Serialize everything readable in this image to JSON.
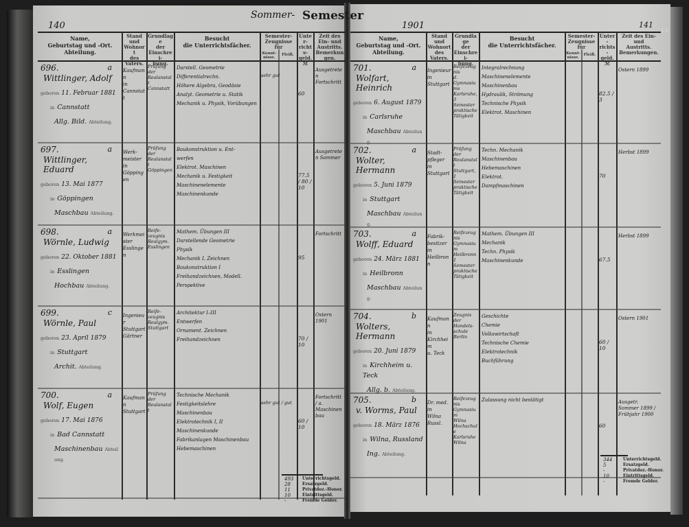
{
  "semester": {
    "season": "Sommer-",
    "label": "Semester",
    "year": "1901"
  },
  "left_page_number": "140",
  "right_page_number": "141",
  "margin_mark": "13",
  "headers": {
    "name": "Name,\nGeburtstag und -Ort.\nAbteilung.",
    "stand": "Stand\nund\nWohnort\ndes\nVaters.",
    "grundlage": "Grundlage\nder\nEinschrei-\nbung.",
    "besucht": "Besucht\ndie Unterrichtsfächer.",
    "zeugnisse": "Semester-\nZeugnisse für",
    "zeugnisse_sub1": "Kennt-\nnisse.",
    "zeugnisse_sub2": "Fleiß.",
    "unterrichtsgeld": "Unter-\nrichts-\ngeld.\nℳ",
    "zeit": "Zeit des Ein- und\nAustritts.\nBemerkungen."
  },
  "printed": {
    "geboren": "geboren",
    "in": "in",
    "abteilung": "Abteilung."
  },
  "left_entries": [
    {
      "no": "696.",
      "cls": "a",
      "name": "Wittlinger, Adolf",
      "born": "11. Februar 1881",
      "place": "Cannstatt",
      "dept": "Allg. Bild.",
      "father": [
        "Kaufmann",
        "in",
        "Cannstatt"
      ],
      "basis": [
        "Prüfung",
        "der",
        "Realanstalt",
        "Cannstatt"
      ],
      "subjects": [
        "Darstell. Geometrie",
        "Differentialrechn.",
        "Höhere Algebra, Geodäsie",
        "Analyt. Geometrie u. Statik",
        "Mechanik u. Physik, Vorübungen"
      ],
      "grades": "sehr gut",
      "fee": "60",
      "remark": "Ausgetreten Fortschritt"
    },
    {
      "no": "697.",
      "cls": "a",
      "name": "Wittlinger, Eduard",
      "born": "13. Mai 1877",
      "place": "Göppingen",
      "dept": "Maschbau",
      "father": [
        "Werk-",
        "meister",
        "in",
        "Göppingen"
      ],
      "basis": [
        "Prüfung",
        "der",
        "Realanstalt",
        "Göppingen"
      ],
      "subjects": [
        "Baukonstruktion u. Ent-",
        "werfen",
        "Elektrot. Maschinen",
        "Mechanik u. Festigkeit",
        "Maschinenelemente",
        "Maschinenkunde"
      ],
      "grades": "",
      "fee": "77.5 / 80 / 10",
      "remark": "Ausgetreten Sommer"
    },
    {
      "no": "698.",
      "cls": "a",
      "name": "Wörnle, Ludwig",
      "born": "22. Oktober 1881",
      "place": "Esslingen",
      "dept": "Hochbau",
      "father": [
        "Werkmeister",
        "Esslingen"
      ],
      "basis": [
        "Reife-",
        "zeugnis",
        "Realgym.",
        "Esslingen"
      ],
      "subjects": [
        "Mathem. Übungen III",
        "Darstellende Geometrie",
        "Physik",
        "Mechanik I, Zeichnen",
        "Baukonstruktion I",
        "Freihandzeichnen, Modell.",
        "Perspektive"
      ],
      "grades": "",
      "fee": "95",
      "remark": "Fortschritt"
    },
    {
      "no": "699.",
      "cls": "c",
      "name": "Wörnle, Paul",
      "born": "23. April 1879",
      "place": "Stuttgart",
      "dept": "Archit.",
      "father": [
        "Ingenieur",
        "Stuttgart",
        "Gärtner"
      ],
      "basis": [
        "Reife-",
        "zeugnis",
        "Realgym.",
        "Stuttgart"
      ],
      "subjects": [
        "Architektur I–III",
        "Entwerfen",
        "Ornament. Zeichnen",
        "Freihandzeichnen"
      ],
      "grades": "",
      "fee": "70 / 10",
      "remark": "Ostern 1901"
    },
    {
      "no": "700.",
      "cls": "a",
      "name": "Wolf, Eugen",
      "born": "17. Mai 1876",
      "place": "Bad Cannstatt",
      "dept": "Maschinenbau",
      "father": [
        "Kaufmann",
        "Stuttgart"
      ],
      "basis": [
        "Prüfung",
        "der",
        "Realanstalt"
      ],
      "subjects": [
        "Technische Mechanik",
        "Festigkeitslehre",
        "Maschinenbau",
        "Elektrotechnik I, II",
        "Maschinenkunde",
        "Fabrikanlagen Maschinenbau",
        "Hebemaschinen"
      ],
      "grades": "sehr gut / gut",
      "fee": "60 / 10",
      "remark": "Fortschritt / a. Maschinenbau"
    }
  ],
  "right_entries": [
    {
      "no": "701.",
      "cls": "a",
      "name": "Wolfart, Heinrich",
      "born": "6. August 1879",
      "place": "Carlsruhe",
      "dept": "Maschbau",
      "father": [
        "Ingenieur",
        "in",
        "Stuttgart"
      ],
      "basis": [
        "Reifezeugnis",
        "d. Gymnasiums",
        "Karlsruhe,",
        "3 Semester",
        "praktische",
        "Tätigkeit"
      ],
      "subjects": [
        "Integralrechnung",
        "Maschinenelemente",
        "Maschinenbau",
        "Hydraulik, Strömung",
        "Technische Physik",
        "Elektrot. Maschinen"
      ],
      "grades": "",
      "fee": "82.5 / 3",
      "remark": "Ostern 1899"
    },
    {
      "no": "702.",
      "cls": "a",
      "name": "Wolter, Hermann",
      "born": "5. Juni 1879",
      "place": "Stuttgart",
      "dept": "Maschbau",
      "father": [
        "Stadt-",
        "pfleger",
        "in",
        "Stuttgart"
      ],
      "basis": [
        "Prüfung",
        "der",
        "Realanstalt",
        "Stuttgart,",
        "1 Semester",
        "praktische",
        "Tätigkeit"
      ],
      "subjects": [
        "Techn. Mechanik",
        "Maschinenbau",
        "Hebemaschinen",
        "Elektrot.",
        "Dampfmaschinen"
      ],
      "grades": "",
      "fee": "70",
      "remark": "Herbst 1899"
    },
    {
      "no": "703.",
      "cls": "a",
      "name": "Wolff, Eduard",
      "born": "24. März 1881",
      "place": "Heilbronn",
      "dept": "Maschbau",
      "father": [
        "Fabrik-",
        "besitzer",
        "in",
        "Heilbronn"
      ],
      "basis": [
        "Reifezeugnis",
        "Gymnasium",
        "Heilbronn",
        "1 Semester",
        "praktische",
        "Tätigkeit"
      ],
      "subjects": [
        "Mathem. Übungen III",
        "Mechanik",
        "Techn. Physik",
        "Maschinenkunde"
      ],
      "grades": "",
      "fee": "67.5",
      "remark": "Herbst 1899"
    },
    {
      "no": "704.",
      "cls": "b",
      "name": "Wolters, Hermann",
      "born": "20. Juni 1879",
      "place": "Kirchheim u. Teck",
      "dept": "Allg. b.",
      "father": [
        "Kaufmann",
        "in",
        "Kirchheim",
        "u. Teck"
      ],
      "basis": [
        "Zeugnis",
        "der Handels-",
        "schule",
        "Berlin"
      ],
      "subjects": [
        "Geschichte",
        "Chemie",
        "Volkswirtschaft",
        "Technische Chemie",
        "Elektrotechnik",
        "Buchführung"
      ],
      "grades": "",
      "fee": "60 / 10",
      "remark": "Ostern 1901"
    },
    {
      "no": "705.",
      "cls": "b",
      "name": "v. Worms, Paul",
      "born": "18. März 1876",
      "place": "Wilna, Russland",
      "dept": "Ing.",
      "father": [
        "Dr. med.",
        "in",
        "Wilna",
        "Russl."
      ],
      "basis": [
        "Reifezeugnis",
        "Gymnasium",
        "Wilna",
        "Hochschule",
        "Karlsruhe",
        "Wilna"
      ],
      "subjects": [
        "Zulassung nicht bestätigt"
      ],
      "grades": "",
      "fee": "60",
      "remark": "Ausgetr. Sommer 1899 / Frühjahr 1900"
    }
  ],
  "left_totals": {
    "labels": [
      "Unterrichtsgeld.",
      "Ersatzgeld.",
      "Privatdoz.-Honor.",
      "Eintrittsgeld.",
      "Fremde Gelder."
    ],
    "values": [
      "493",
      "28",
      "11",
      "10",
      "-"
    ]
  },
  "right_totals": {
    "labels": [
      "Unterrichtsgeld.",
      "Ersatzgeld.",
      "Privatdoz.-Honor.",
      "Eintrittsgeld.",
      "Fremde Gelder."
    ],
    "values": [
      "344",
      "5",
      "-",
      "10",
      "-"
    ]
  }
}
